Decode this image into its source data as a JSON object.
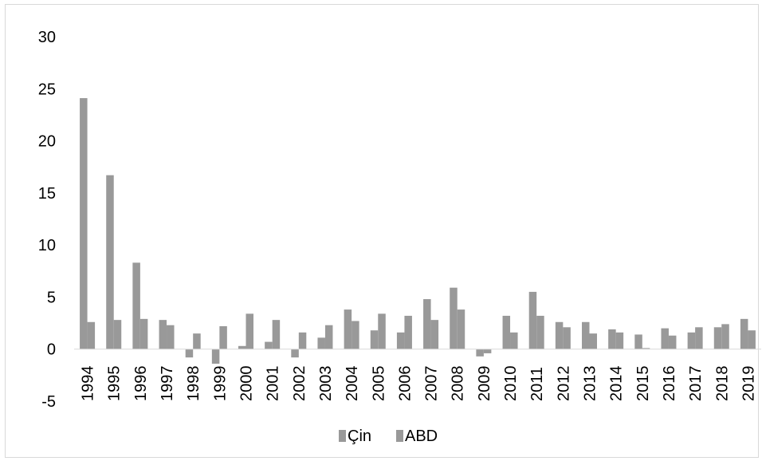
{
  "chart_data": {
    "type": "bar",
    "title": "",
    "xlabel": "",
    "ylabel": "",
    "ylim": [
      -5,
      30
    ],
    "yticks": [
      -5,
      0,
      5,
      10,
      15,
      20,
      25,
      30
    ],
    "grid": false,
    "legend_position": "bottom",
    "categories": [
      "1994",
      "1995",
      "1996",
      "1997",
      "1998",
      "1999",
      "2000",
      "2001",
      "2002",
      "2003",
      "2004",
      "2005",
      "2006",
      "2007",
      "2008",
      "2009",
      "2010",
      "2011",
      "2012",
      "2013",
      "2014",
      "2015",
      "2016",
      "2017",
      "2018",
      "2019"
    ],
    "series": [
      {
        "name": "Çin",
        "color": "#999999",
        "values": [
          24.1,
          16.7,
          8.3,
          2.8,
          -0.8,
          -1.4,
          0.3,
          0.7,
          -0.8,
          1.1,
          3.8,
          1.8,
          1.6,
          4.8,
          5.9,
          -0.7,
          3.2,
          5.5,
          2.6,
          2.6,
          1.9,
          1.4,
          2.0,
          1.6,
          2.1,
          2.9
        ]
      },
      {
        "name": "ABD",
        "color": "#999999",
        "values": [
          2.6,
          2.8,
          2.9,
          2.3,
          1.5,
          2.2,
          3.4,
          2.8,
          1.6,
          2.3,
          2.7,
          3.4,
          3.2,
          2.8,
          3.8,
          -0.4,
          1.6,
          3.2,
          2.1,
          1.5,
          1.6,
          0.1,
          1.3,
          2.1,
          2.4,
          1.8
        ]
      }
    ]
  }
}
